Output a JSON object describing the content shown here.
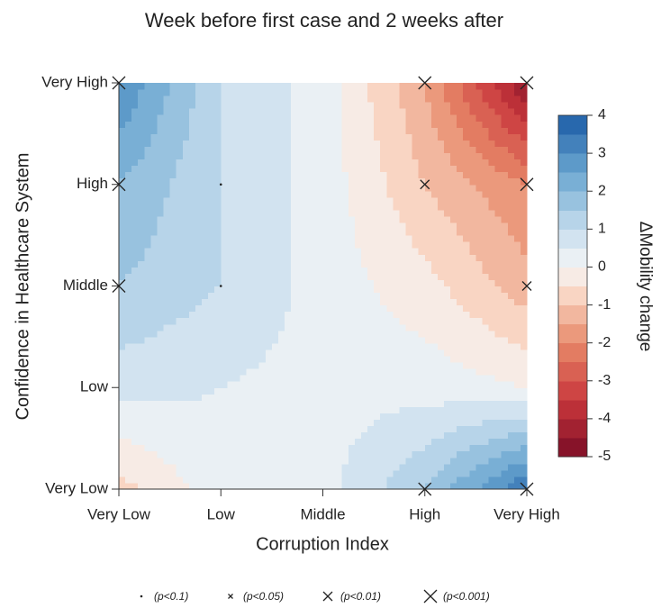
{
  "chart_data": {
    "type": "contour",
    "title": "Week before first case and 2 weeks after",
    "x_label": "Corruption Index",
    "y_label": "Confidence in Healthcare System",
    "x_categories": [
      "Very Low",
      "Low",
      "Middle",
      "High",
      "Very High"
    ],
    "y_categories": [
      "Very Low",
      "Low",
      "Middle",
      "High",
      "Very High"
    ],
    "z": [
      [
        -0.7,
        0.3,
        0.3,
        1.5,
        3.5
      ],
      [
        0.7,
        0.5,
        0.3,
        0.3,
        0.0
      ],
      [
        1.5,
        1.0,
        0.3,
        -0.3,
        -1.3
      ],
      [
        2.0,
        1.0,
        0.3,
        -1.0,
        -2.0
      ],
      [
        3.0,
        1.0,
        0.3,
        -1.5,
        -4.5
      ]
    ],
    "colorbar_label": "ΔMobility change",
    "zlim": [
      -5,
      4
    ],
    "zticks": [
      4,
      3,
      2,
      1,
      0,
      -1,
      -2,
      -3,
      -4,
      -5
    ],
    "level_step": 0.5,
    "colorscale": [
      [
        -5,
        "#7a0c25"
      ],
      [
        -3.5,
        "#c9373c"
      ],
      [
        -2,
        "#e88a6a"
      ],
      [
        -0.75,
        "#f9d5c3"
      ],
      [
        0,
        "#f6f6f6"
      ],
      [
        1,
        "#c6ddee"
      ],
      [
        2.5,
        "#6aa6d0"
      ],
      [
        4,
        "#1b5ba6"
      ]
    ],
    "significance_legend": [
      "(p<0.1)",
      "(p<0.05)",
      "(p<0.01)",
      "(p<0.001)"
    ],
    "markers": [
      {
        "x": "Very Low",
        "y": "Very High",
        "level": 3
      },
      {
        "x": "High",
        "y": "Very High",
        "level": 3
      },
      {
        "x": "Very High",
        "y": "Very High",
        "level": 3
      },
      {
        "x": "Very Low",
        "y": "High",
        "level": 3
      },
      {
        "x": "Low",
        "y": "High",
        "level": 0
      },
      {
        "x": "High",
        "y": "High",
        "level": 2
      },
      {
        "x": "Very High",
        "y": "High",
        "level": 3
      },
      {
        "x": "Very Low",
        "y": "Middle",
        "level": 3
      },
      {
        "x": "Low",
        "y": "Middle",
        "level": 0
      },
      {
        "x": "Very High",
        "y": "Middle",
        "level": 2
      },
      {
        "x": "High",
        "y": "Very Low",
        "level": 3
      },
      {
        "x": "Very High",
        "y": "Very Low",
        "level": 3
      }
    ]
  }
}
